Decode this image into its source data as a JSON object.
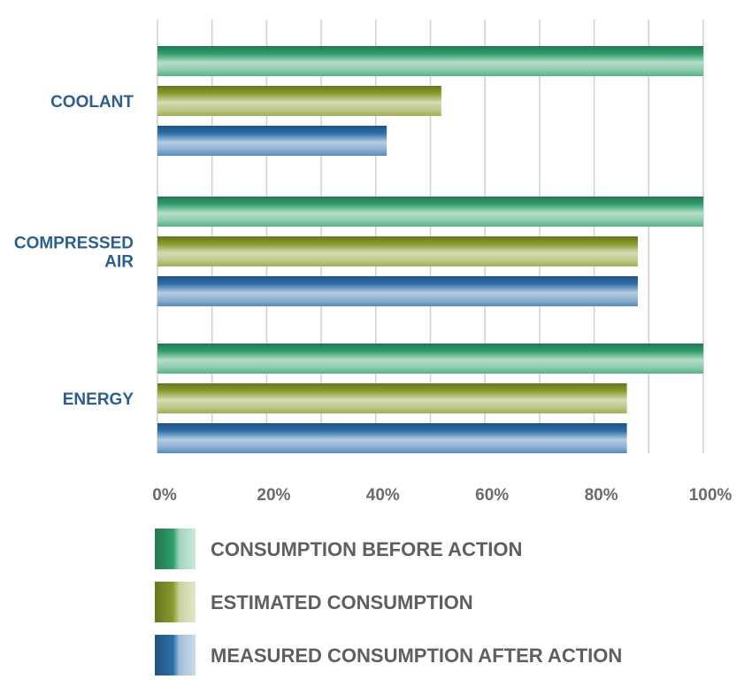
{
  "chart_data": {
    "type": "bar",
    "orientation": "horizontal",
    "categories": [
      [
        "COOLANT"
      ],
      [
        "COMPRESSED",
        "AIR"
      ],
      [
        "ENERGY"
      ]
    ],
    "series": [
      {
        "name": "CONSUMPTION BEFORE ACTION",
        "values": [
          100,
          100,
          100
        ],
        "color": "#2f9e6a"
      },
      {
        "name": "ESTIMATED CONSUMPTION",
        "values": [
          52,
          88,
          86
        ],
        "color": "#8a9a2a"
      },
      {
        "name": "MEASURED CONSUMPTION AFTER ACTION",
        "values": [
          42,
          88,
          86
        ],
        "color": "#2d6ea8"
      }
    ],
    "xlim": [
      0,
      100
    ],
    "xticks": [
      "0%",
      "20%",
      "40%",
      "60%",
      "80%",
      "100%"
    ],
    "grid": true,
    "legend_position": "bottom",
    "colors": {
      "category_label": "#2c5f8f",
      "tick_label": "#6b6b6b",
      "legend_label": "#5f5f5f",
      "gridline": "#cfcfcf"
    }
  }
}
